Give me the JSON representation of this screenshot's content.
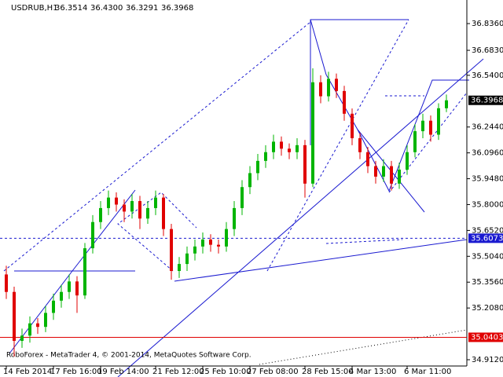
{
  "chart_data": {
    "type": "candlestick",
    "symbol": "USDRUB,H1",
    "quote": [
      "36.3514",
      "36.4300",
      "36.3291",
      "36.3968"
    ],
    "footer": "RoboForex - MetaTrader 4, © 2001-2014, MetaQuotes Software Corp.",
    "categories": [
      "14 Feb 2014",
      null,
      null,
      null,
      null,
      null,
      "17 Feb 16:00",
      null,
      null,
      null,
      null,
      null,
      "19 Feb 14:00",
      null,
      null,
      null,
      null,
      null,
      null,
      "21 Feb 12:00",
      null,
      null,
      null,
      null,
      null,
      "25 Feb 10:00",
      null,
      null,
      null,
      null,
      null,
      "27 Feb 08:00",
      null,
      null,
      null,
      null,
      null,
      null,
      "28 Feb 15:00",
      null,
      null,
      null,
      null,
      null,
      "4 Mar 13:00",
      null,
      null,
      null,
      null,
      null,
      null,
      "6 Mar 11:00",
      null,
      null,
      null,
      null,
      null
    ],
    "open": [
      35.4,
      35.3,
      35.02,
      35.05,
      35.12,
      35.1,
      35.18,
      35.25,
      35.3,
      35.36,
      35.28,
      35.55,
      35.7,
      35.78,
      35.84,
      35.8,
      35.76,
      35.82,
      35.72,
      35.78,
      35.84,
      35.66,
      35.42,
      35.46,
      35.52,
      35.56,
      35.6,
      35.57,
      35.56,
      35.66,
      35.78,
      35.9,
      35.98,
      36.05,
      36.1,
      36.16,
      36.12,
      36.1,
      36.14,
      35.92,
      36.5,
      36.42,
      36.52,
      36.45,
      36.32,
      36.18,
      36.1,
      36.02,
      35.96,
      36.02,
      35.92,
      36.0,
      36.1,
      36.22,
      36.28,
      36.2,
      36.3514
    ],
    "high": [
      35.45,
      35.33,
      35.09,
      35.16,
      35.15,
      35.22,
      35.29,
      35.34,
      35.4,
      35.39,
      35.58,
      35.74,
      35.82,
      35.88,
      35.87,
      35.83,
      35.86,
      35.85,
      35.82,
      35.88,
      35.86,
      35.69,
      35.5,
      35.56,
      35.6,
      35.64,
      35.63,
      35.6,
      35.7,
      35.82,
      35.94,
      36.02,
      36.09,
      36.14,
      36.2,
      36.19,
      36.15,
      36.18,
      36.17,
      36.58,
      36.54,
      36.56,
      36.55,
      36.48,
      36.35,
      36.21,
      36.13,
      36.05,
      36.06,
      36.05,
      36.04,
      36.14,
      36.26,
      36.32,
      36.31,
      36.38,
      36.43
    ],
    "low": [
      35.26,
      34.93,
      34.98,
      35.01,
      35.06,
      35.07,
      35.14,
      35.21,
      35.26,
      35.18,
      35.26,
      35.52,
      35.66,
      35.74,
      35.76,
      35.7,
      35.72,
      35.66,
      35.69,
      35.74,
      35.62,
      35.37,
      35.38,
      35.42,
      35.48,
      35.52,
      35.53,
      35.52,
      35.53,
      35.62,
      35.74,
      35.86,
      35.94,
      36.01,
      36.06,
      36.08,
      36.06,
      36.06,
      35.84,
      35.9,
      36.38,
      36.39,
      36.41,
      36.28,
      36.14,
      36.06,
      35.98,
      35.92,
      35.93,
      35.88,
      35.89,
      35.97,
      36.07,
      36.18,
      36.16,
      36.17,
      36.3291
    ],
    "close": [
      35.3,
      35.02,
      35.05,
      35.12,
      35.1,
      35.18,
      35.25,
      35.3,
      35.36,
      35.28,
      35.55,
      35.7,
      35.78,
      35.84,
      35.8,
      35.76,
      35.82,
      35.72,
      35.78,
      35.84,
      35.66,
      35.42,
      35.46,
      35.52,
      35.56,
      35.6,
      35.57,
      35.56,
      35.66,
      35.78,
      35.9,
      35.98,
      36.05,
      36.1,
      36.16,
      36.12,
      36.1,
      36.14,
      35.92,
      36.5,
      36.42,
      36.52,
      36.45,
      36.32,
      36.18,
      36.1,
      36.02,
      35.96,
      36.02,
      35.92,
      36.0,
      36.1,
      36.22,
      36.28,
      36.2,
      36.3514,
      36.3968
    ],
    "up_color": "#00b400",
    "down_color": "#e00000",
    "ylim": [
      34.876,
      36.971
    ],
    "yticks": [
      {
        "value": 36.836,
        "label": "36.8360"
      },
      {
        "value": 36.683,
        "label": "36.6830"
      },
      {
        "value": 36.54,
        "label": "36.5400"
      },
      {
        "value": 36.244,
        "label": "36.2440"
      },
      {
        "value": 36.096,
        "label": "36.0960"
      },
      {
        "value": 35.948,
        "label": "35.9480"
      },
      {
        "value": 35.8,
        "label": "35.8000"
      },
      {
        "value": 35.652,
        "label": "35.6520"
      },
      {
        "value": 35.504,
        "label": "35.5040"
      },
      {
        "value": 35.356,
        "label": "35.3560"
      },
      {
        "value": 35.208,
        "label": "35.2080"
      },
      {
        "value": 34.912,
        "label": "34.9120"
      }
    ],
    "current_price": 36.3968,
    "hlines": [
      {
        "value": 35.6073,
        "color": "#1a1ad0",
        "style": "dashed"
      },
      {
        "value": 35.0403,
        "color": "#e00000",
        "style": "solid"
      }
    ]
  }
}
